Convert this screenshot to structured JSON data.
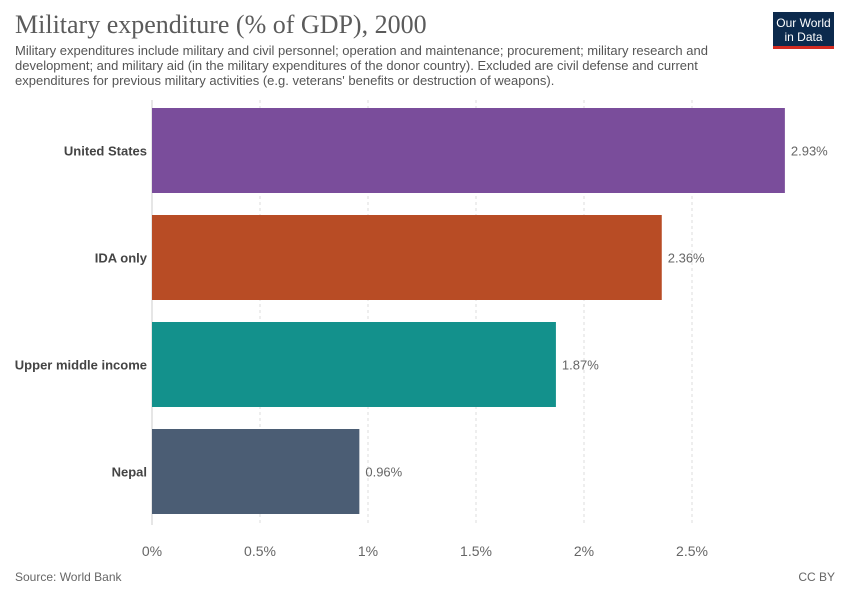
{
  "header": {
    "title": "Military expenditure (% of GDP), 2000",
    "subtitle": "Military expenditures include military and civil personnel; operation and maintenance; procurement; military research and development; and military aid (in the military expenditures of the donor country). Excluded are civil defense and current expenditures for previous military activities (e.g. veterans' benefits or destruction of weapons).",
    "logo_line1": "Our World",
    "logo_line2": "in Data"
  },
  "footer": {
    "source": "Source: World Bank",
    "license": "CC BY"
  },
  "chart_data": {
    "type": "bar",
    "orientation": "horizontal",
    "title": "Military expenditure (% of GDP), 2000",
    "categories": [
      "United States",
      "IDA only",
      "Upper middle income",
      "Nepal"
    ],
    "values": [
      2.93,
      2.36,
      1.87,
      0.96
    ],
    "value_labels": [
      "2.93%",
      "2.36%",
      "1.87%",
      "0.96%"
    ],
    "colors": [
      "#7a4d9b",
      "#b84c25",
      "#13918c",
      "#4b5d74"
    ],
    "xlim": [
      0,
      3
    ],
    "xticks": [
      0,
      0.5,
      1,
      1.5,
      2,
      2.5
    ],
    "xtick_labels": [
      "0%",
      "0.5%",
      "1%",
      "1.5%",
      "2%",
      "2.5%"
    ],
    "xlabel": "",
    "ylabel": "",
    "grid": true
  }
}
